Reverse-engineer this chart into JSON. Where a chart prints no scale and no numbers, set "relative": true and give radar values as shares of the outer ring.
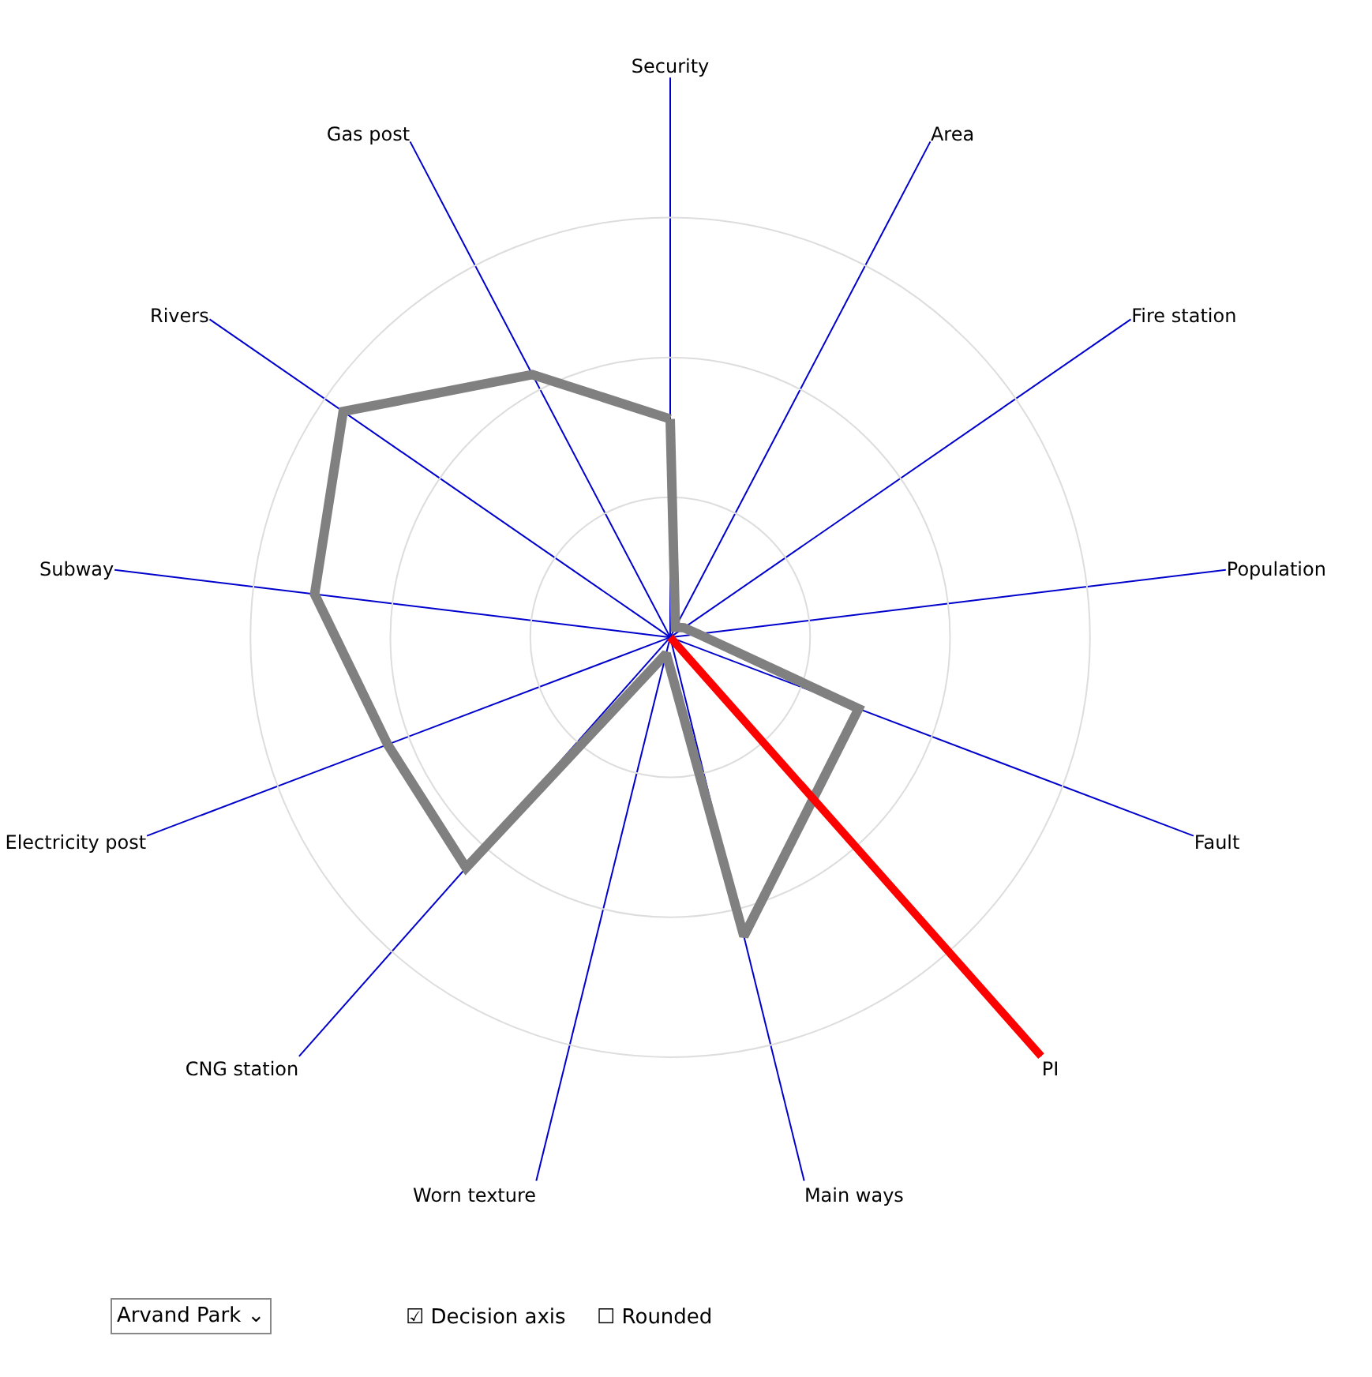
{
  "chart_data": {
    "type": "radar",
    "relative": true,
    "grid": true,
    "marker": "none",
    "line_style": "solid",
    "categories": [
      "Security",
      "Area",
      "Fire station",
      "Population",
      "Fault",
      "PI",
      "Main ways",
      "Worn texture",
      "CNG station",
      "Electricity post",
      "Subway",
      "Rivers",
      "Gas post"
    ],
    "series": [
      {
        "color": "#808080",
        "values": [
          0.39,
          0.02,
          0.03,
          0.05,
          0.36,
          null,
          0.55,
          0.03,
          0.55,
          0.54,
          0.64,
          0.71,
          0.53
        ]
      },
      {
        "color": "#ff0000",
        "values": [
          0,
          0,
          0,
          0,
          0,
          1,
          0,
          0,
          0,
          0,
          0,
          0,
          0
        ]
      }
    ],
    "annotations": [
      "Arvand Park ⌄",
      "☑ Decision axis",
      "☐ Rounded"
    ]
  }
}
